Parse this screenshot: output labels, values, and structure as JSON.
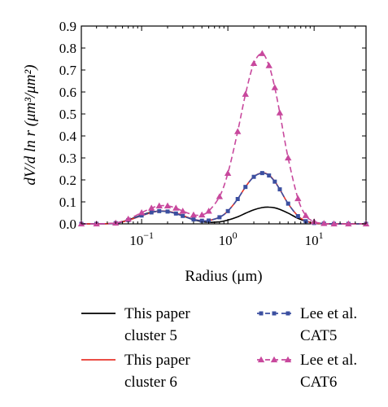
{
  "chart_data": {
    "type": "line",
    "xscale": "log",
    "xlim": [
      0.02,
      40
    ],
    "ylim": [
      0,
      0.9
    ],
    "xlabel": "Radius (μm)",
    "ylabel": "dV/d ln r (μm³/μm²)",
    "x_ticks": [
      {
        "value": 0.1,
        "base": "10",
        "exp": "−1"
      },
      {
        "value": 1,
        "base": "10",
        "exp": "0"
      },
      {
        "value": 10,
        "base": "10",
        "exp": "1"
      }
    ],
    "y_ticks": [
      {
        "value": 0.0,
        "label": "0.0"
      },
      {
        "value": 0.1,
        "label": "0.1"
      },
      {
        "value": 0.2,
        "label": "0.2"
      },
      {
        "value": 0.3,
        "label": "0.3"
      },
      {
        "value": 0.4,
        "label": "0.4"
      },
      {
        "value": 0.5,
        "label": "0.5"
      },
      {
        "value": 0.6,
        "label": "0.6"
      },
      {
        "value": 0.7,
        "label": "0.7"
      },
      {
        "value": 0.8,
        "label": "0.8"
      },
      {
        "value": 0.9,
        "label": "0.9"
      }
    ],
    "grid": false,
    "legend_position": "bottom",
    "x": [
      0.02,
      0.03,
      0.05,
      0.07,
      0.1,
      0.13,
      0.16,
      0.2,
      0.25,
      0.3,
      0.4,
      0.5,
      0.6,
      0.8,
      1.0,
      1.3,
      1.6,
      2.0,
      2.5,
      3.0,
      3.5,
      4.0,
      5.0,
      6.5,
      8.0,
      10,
      13,
      17,
      25,
      40
    ],
    "series": [
      {
        "name_lines": [
          "This paper",
          "cluster 5"
        ],
        "color": "#000000",
        "style": "solid",
        "marker": "none",
        "values": [
          0.0,
          0.0,
          0.003,
          0.018,
          0.04,
          0.053,
          0.058,
          0.056,
          0.047,
          0.036,
          0.019,
          0.01,
          0.007,
          0.009,
          0.017,
          0.032,
          0.048,
          0.064,
          0.074,
          0.076,
          0.073,
          0.066,
          0.049,
          0.025,
          0.012,
          0.004,
          0.001,
          0.0,
          0.0,
          0.0
        ]
      },
      {
        "name_lines": [
          "This paper",
          "cluster 6"
        ],
        "color": "#e8352b",
        "style": "solid",
        "marker": "none",
        "values": [
          0.0,
          0.0,
          0.003,
          0.016,
          0.037,
          0.051,
          0.058,
          0.057,
          0.049,
          0.038,
          0.021,
          0.014,
          0.015,
          0.03,
          0.058,
          0.113,
          0.168,
          0.215,
          0.232,
          0.222,
          0.193,
          0.157,
          0.092,
          0.036,
          0.013,
          0.004,
          0.001,
          0.0,
          0.0,
          0.0
        ]
      },
      {
        "name_lines": [
          "Lee et al.",
          "CAT5"
        ],
        "color": "#3b4fa0",
        "style": "dashed",
        "marker": "square",
        "values": [
          0.0,
          0.0,
          0.003,
          0.017,
          0.038,
          0.052,
          0.058,
          0.056,
          0.047,
          0.036,
          0.02,
          0.014,
          0.015,
          0.03,
          0.058,
          0.113,
          0.168,
          0.214,
          0.231,
          0.22,
          0.192,
          0.157,
          0.092,
          0.035,
          0.012,
          0.004,
          0.001,
          0.0,
          0.0,
          0.0
        ]
      },
      {
        "name_lines": [
          "Lee et al.",
          "CAT6"
        ],
        "color": "#c8489d",
        "style": "dashed",
        "marker": "triangle",
        "values": [
          0.0,
          0.0,
          0.004,
          0.022,
          0.051,
          0.072,
          0.082,
          0.082,
          0.072,
          0.058,
          0.041,
          0.041,
          0.058,
          0.124,
          0.23,
          0.42,
          0.59,
          0.73,
          0.775,
          0.72,
          0.62,
          0.505,
          0.3,
          0.115,
          0.038,
          0.01,
          0.002,
          0.0,
          0.0,
          0.0
        ]
      }
    ]
  }
}
